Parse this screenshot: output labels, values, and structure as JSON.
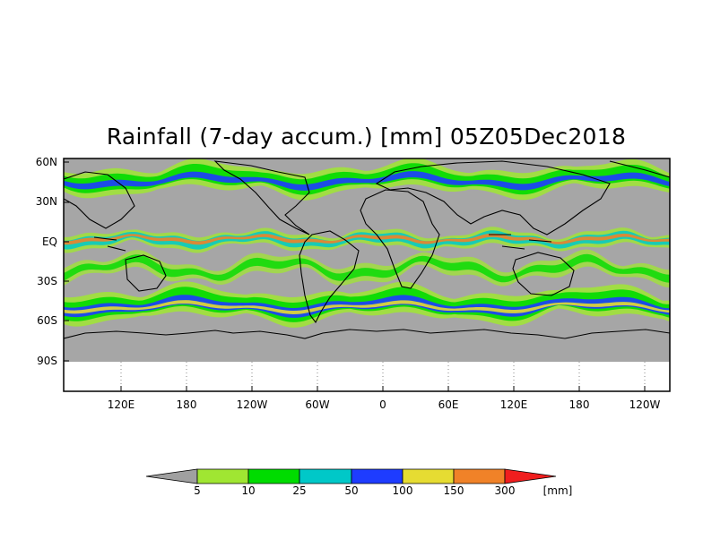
{
  "title": "Rainfall (7-day accum.) [mm] 05Z05Dec2018",
  "map": {
    "lat_labels": [
      "60N",
      "30N",
      "EQ",
      "30S",
      "60S",
      "90S"
    ],
    "lon_labels": [
      "120E",
      "180",
      "120W",
      "60W",
      "0",
      "60E",
      "120E",
      "180",
      "120W"
    ],
    "colors": {
      "no_rain": "#a6a6a6",
      "land_outline": "#000000",
      "below_map": "#ffffff"
    }
  },
  "colorbar": {
    "unit": "[mm]",
    "thresholds": [
      "5",
      "10",
      "25",
      "50",
      "100",
      "150",
      "300"
    ],
    "colors": [
      "#a0a0a0",
      "#a0e632",
      "#00dc00",
      "#00c8c8",
      "#1e3cff",
      "#e6dc32",
      "#f08228",
      "#f01e1e"
    ]
  }
}
